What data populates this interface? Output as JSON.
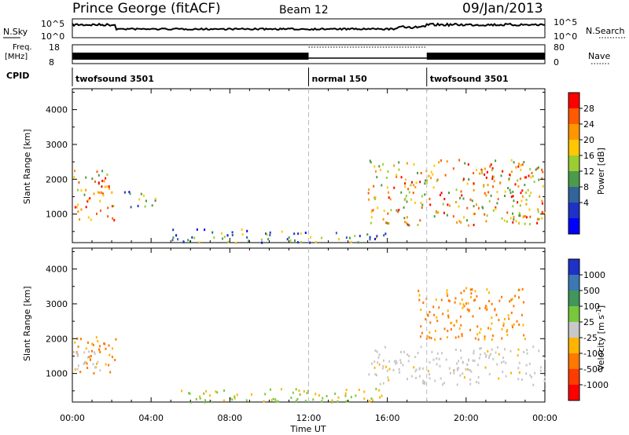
{
  "header": {
    "station": "Prince George (fitACF)",
    "beam": "Beam 12",
    "date": "09/Jan/2013"
  },
  "nsky_panel": {
    "left_label": "N.Sky",
    "right_label": "N.Search",
    "left_ticks": [
      "10^5",
      "10^0"
    ],
    "right_ticks": [
      "10^5",
      "10^0"
    ]
  },
  "freq_panel": {
    "left_label_top": "Freq.",
    "left_label_bottom": "[MHz]",
    "right_label": "Nave",
    "left_ticks": [
      "18",
      "8"
    ],
    "right_ticks": [
      "80",
      "0"
    ]
  },
  "cpid": {
    "label": "CPID",
    "segments": [
      {
        "start_hour": 0,
        "end_hour": 12,
        "text": "twofsound 3501"
      },
      {
        "start_hour": 12,
        "end_hour": 18,
        "text": "normal 150"
      },
      {
        "start_hour": 18,
        "end_hour": 24,
        "text": "twofsound 3501"
      }
    ]
  },
  "power_colorbar": {
    "title": "Power [dB]",
    "ticks": [
      "28",
      "24",
      "20",
      "16",
      "12",
      "8",
      "4"
    ],
    "colors": [
      "#ff0000",
      "#ff5a00",
      "#ff9600",
      "#ffc800",
      "#9bcd32",
      "#4b9b4b",
      "#32649b",
      "#1e32c8",
      "#0000ff"
    ]
  },
  "velocity_colorbar": {
    "title": "Velocity [m s^-1]",
    "title_main": "Velocity  [m s",
    "title_sup": "-1",
    "title_end": "]",
    "ticks": [
      "1000",
      "500",
      "100",
      "25",
      "-25",
      "-100",
      "-500",
      "-1000"
    ],
    "colors": [
      "#1e32c8",
      "#3c78b4",
      "#41965a",
      "#78c83c",
      "#c8c8c8",
      "#ffb400",
      "#ff7800",
      "#ff3c00",
      "#ff0000"
    ]
  },
  "x_axis": {
    "label": "Time UT",
    "ticks": [
      "00:00",
      "04:00",
      "08:00",
      "12:00",
      "16:00",
      "20:00",
      "00:00"
    ]
  },
  "y_axis": {
    "label": "Slant Range [km]",
    "ticks": [
      "1000",
      "2000",
      "3000",
      "4000"
    ]
  },
  "chart_data": [
    {
      "type": "heatmap",
      "quantity": "power",
      "xlabel": "Time UT",
      "ylabel": "Slant Range [km]",
      "xlim_hours": [
        0,
        24
      ],
      "ylim": [
        180,
        4600
      ],
      "zlim": [
        0,
        30
      ],
      "regions": [
        {
          "t0": 0.0,
          "t1": 2.1,
          "r0": 800,
          "r1": 2300,
          "level": "high"
        },
        {
          "t0": 2.6,
          "t1": 4.2,
          "r0": 1200,
          "r1": 1700,
          "level": "medium"
        },
        {
          "t0": 5.0,
          "t1": 12.0,
          "r0": 200,
          "r1": 600,
          "level": "medium"
        },
        {
          "t0": 12.0,
          "t1": 16.0,
          "r0": 200,
          "r1": 500,
          "level": "medium"
        },
        {
          "t0": 15.0,
          "t1": 24.0,
          "r0": 700,
          "r1": 2600,
          "level": "high"
        }
      ]
    },
    {
      "type": "heatmap",
      "quantity": "velocity",
      "xlabel": "Time UT",
      "ylabel": "Slant Range [km]",
      "xlim_hours": [
        0,
        24
      ],
      "ylim": [
        180,
        4600
      ],
      "zlim": [
        -1000,
        1000
      ],
      "regions": [
        {
          "t0": 0.0,
          "t1": 2.2,
          "r0": 1000,
          "r1": 2100,
          "level": "-100 to -500"
        },
        {
          "t0": 0.0,
          "t1": 1.5,
          "r0": 1000,
          "r1": 1700,
          "level": "-25 to 25"
        },
        {
          "t0": 5.0,
          "t1": 16.0,
          "r0": 200,
          "r1": 600,
          "level": "25 to 100"
        },
        {
          "t0": 15.0,
          "t1": 24.0,
          "r0": 700,
          "r1": 1800,
          "level": "-25 to 25"
        },
        {
          "t0": 17.5,
          "t1": 23.0,
          "r0": 2000,
          "r1": 3500,
          "level": "-100 to -500"
        }
      ]
    }
  ]
}
